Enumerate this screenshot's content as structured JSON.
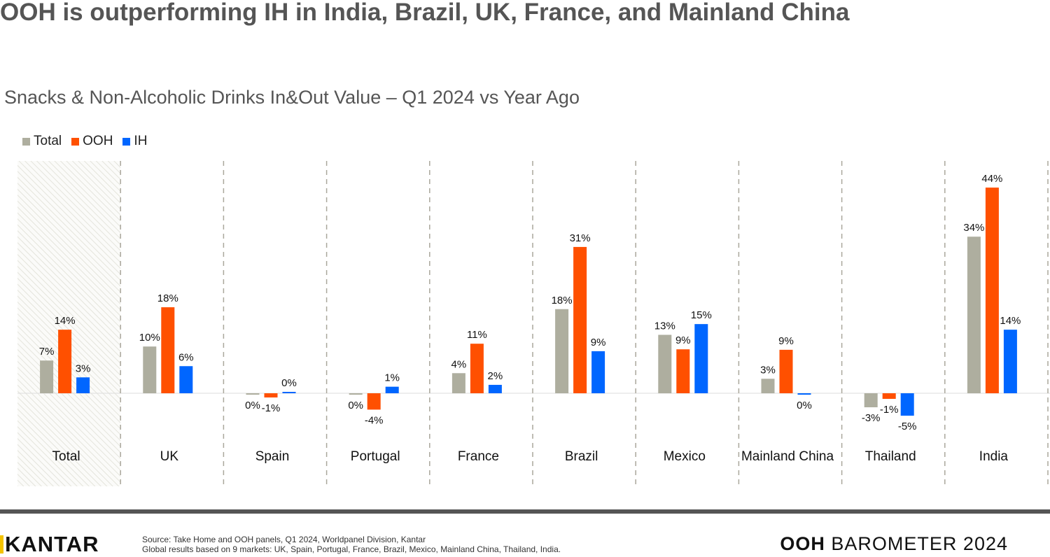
{
  "title": "OOH is outperforming IH in India, Brazil, UK, France, and Mainland China",
  "footer": {
    "logo": "KANTAR",
    "source_line1": "Source: Take Home and OOH panels, Q1 2024, Worldpanel Division, Kantar",
    "source_line2": "Global results based on 9 markets: UK, Spain, Portugal, France, Brazil, Mexico, Mainland China, Thailand, India.",
    "brand_bold": "OOH",
    "brand_rest": " BAROMETER 2024"
  },
  "chart_data": {
    "type": "bar",
    "title": "Snacks & Non-Alcoholic Drinks In&Out Value – Q1 2024 vs Year Ago",
    "legend_position": "top-left",
    "grid": false,
    "categories": [
      "Total",
      "UK",
      "Spain",
      "Portugal",
      "France",
      "Brazil",
      "Mexico",
      "Mainland China",
      "Thailand",
      "India"
    ],
    "highlighted_category": "Total",
    "series": [
      {
        "name": "Total",
        "color": "#aeae9f",
        "values": [
          7,
          10,
          -0.3,
          -0.3,
          4.3,
          18,
          12.5,
          3.1,
          -3,
          33.5
        ],
        "labels": [
          "7%",
          "10%",
          "0%",
          "0%",
          "4%",
          "18%",
          "13%",
          "3%",
          "-3%",
          "34%"
        ]
      },
      {
        "name": "OOH",
        "color": "#ff5000",
        "values": [
          13.6,
          18.4,
          -0.9,
          -3.5,
          10.6,
          31.3,
          9.4,
          9.3,
          -1.2,
          44
        ],
        "labels": [
          "14%",
          "18%",
          "-1%",
          "-4%",
          "11%",
          "31%",
          "9%",
          "9%",
          "-1%",
          "44%"
        ]
      },
      {
        "name": "IH",
        "color": "#0066ff",
        "values": [
          3.4,
          5.8,
          0.2,
          1.4,
          1.8,
          9,
          14.8,
          -0.2,
          -4.8,
          13.6
        ],
        "labels": [
          "3%",
          "6%",
          "0%",
          "1%",
          "2%",
          "9%",
          "15%",
          "0%",
          "-5%",
          "14%"
        ]
      }
    ]
  }
}
